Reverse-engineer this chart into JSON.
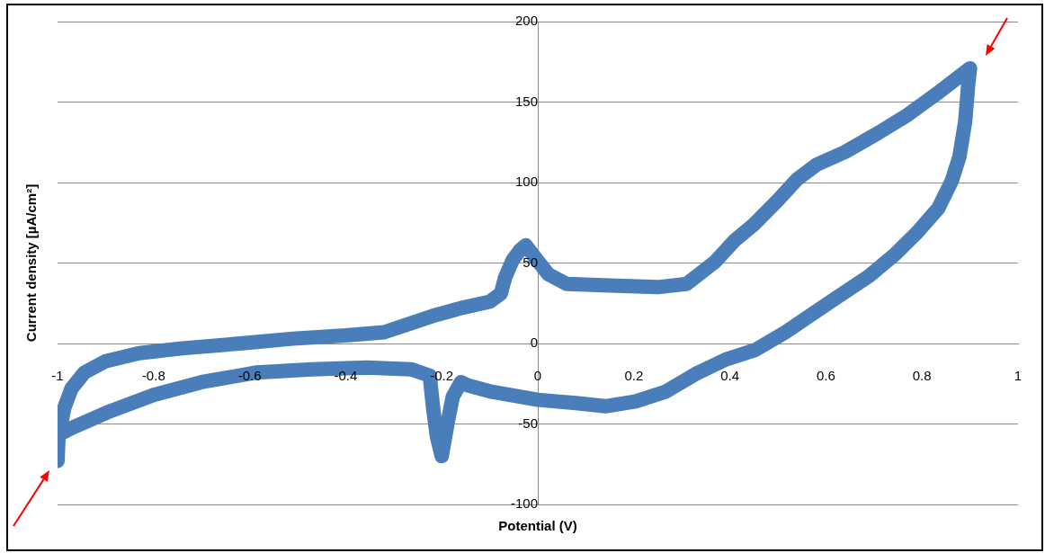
{
  "chart_data": {
    "type": "line",
    "xlabel": "Potential (V)",
    "ylabel": "Current density [µA/cm²]",
    "color": "#4a7ebb",
    "x": [
      -1.0,
      -0.998,
      -0.986,
      -0.971,
      -0.944,
      -0.9,
      -0.83,
      -0.74,
      -0.62,
      -0.51,
      -0.4,
      -0.32,
      -0.28,
      -0.22,
      -0.16,
      -0.1,
      -0.077,
      -0.068,
      -0.052,
      -0.037,
      -0.025,
      -0.002,
      0.022,
      0.06,
      0.15,
      0.25,
      0.31,
      0.34,
      0.37,
      0.41,
      0.45,
      0.5,
      0.54,
      0.58,
      0.64,
      0.71,
      0.77,
      0.83,
      0.9,
      0.896,
      0.89,
      0.878,
      0.862,
      0.834,
      0.79,
      0.746,
      0.69,
      0.61,
      0.516,
      0.453,
      0.391,
      0.328,
      0.266,
      0.204,
      0.141,
      0.079,
      0.0,
      -0.096,
      -0.146,
      -0.16,
      -0.177,
      -0.187,
      -0.2,
      -0.21,
      -0.218,
      -0.225,
      -0.264,
      -0.356,
      -0.47,
      -0.585,
      -0.7,
      -0.8,
      -0.89,
      -0.967,
      -0.994
    ],
    "values": [
      -73,
      -58,
      -40,
      -28,
      -18,
      -11,
      -6,
      -3,
      0,
      3,
      5,
      7,
      11,
      17,
      22,
      26,
      31,
      41,
      52,
      58,
      61,
      52,
      43,
      37,
      36,
      35,
      37,
      44,
      51,
      64,
      74,
      89,
      102,
      111,
      119,
      131,
      142,
      155,
      171,
      160,
      138,
      116,
      101,
      84,
      69,
      56,
      42,
      26,
      7,
      -4,
      -10,
      -19,
      -30,
      -36,
      -39,
      -37,
      -35,
      -30,
      -26,
      -24,
      -33,
      -48,
      -70,
      -58,
      -40,
      -20,
      -16,
      -15,
      -16,
      -18,
      -24,
      -32,
      -42,
      -52,
      -56
    ],
    "xlim": [
      -1,
      1
    ],
    "xticks": [
      -1,
      -0.8,
      -0.6,
      -0.4,
      -0.2,
      0,
      0.2,
      0.4,
      0.6,
      0.8,
      1
    ],
    "ylim": [
      -100,
      200
    ],
    "yticks": [
      -100,
      -50,
      0,
      50,
      100,
      150,
      200
    ],
    "grid": "y"
  }
}
